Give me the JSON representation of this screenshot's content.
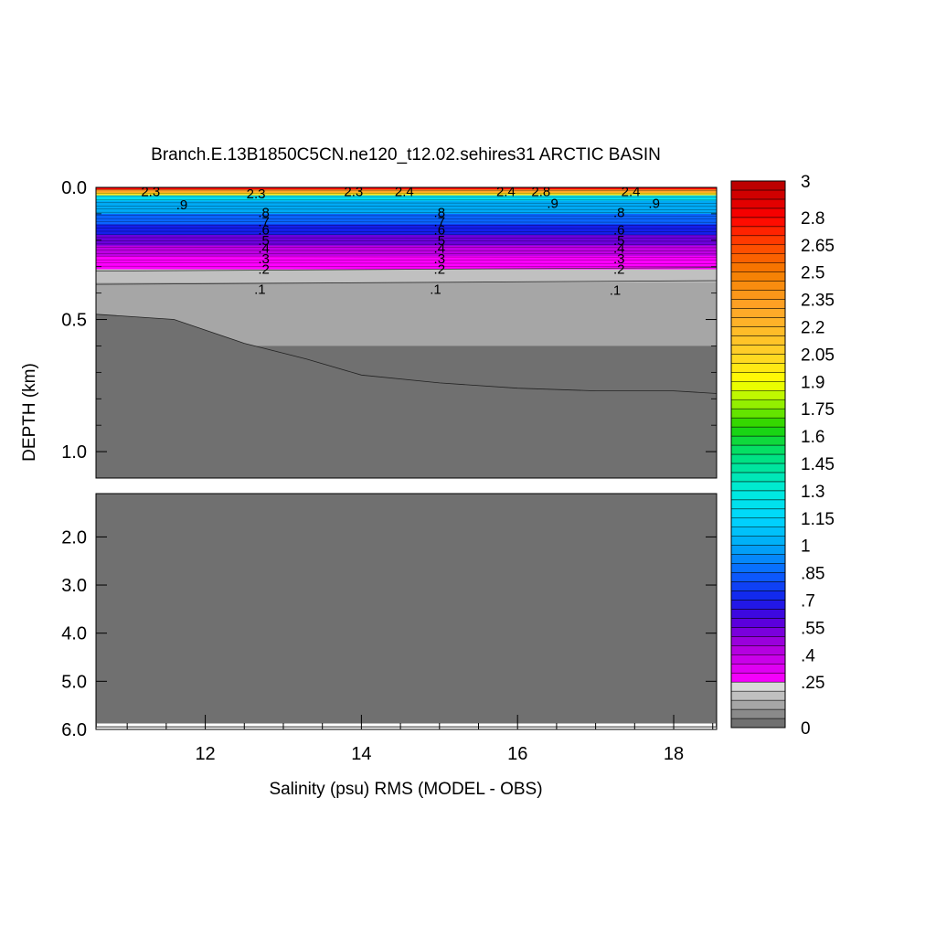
{
  "chart_data": {
    "type": "heatmap",
    "title": "Branch.E.13B1850C5CN.ne120_t12.02.sehires31 ARCTIC BASIN",
    "xlabel": "Salinity (psu) RMS (MODEL - OBS)",
    "ylabel": "DEPTH (km)",
    "xlim": [
      10.6,
      18.55
    ],
    "x_ticks": [
      {
        "value": 12,
        "label": "12"
      },
      {
        "value": 14,
        "label": "14"
      },
      {
        "value": 16,
        "label": "16"
      },
      {
        "value": 18,
        "label": "18"
      }
    ],
    "upper_panel": {
      "ylim": [
        0.0,
        1.1
      ],
      "y_ticks": [
        {
          "value": 0.0,
          "label": "0.0"
        },
        {
          "value": 0.5,
          "label": "0.5"
        },
        {
          "value": 1.0,
          "label": "1.0"
        }
      ]
    },
    "lower_panel": {
      "ylim": [
        1.1,
        6.0
      ],
      "y_ticks": [
        {
          "value": 2.0,
          "label": "2.0"
        },
        {
          "value": 3.0,
          "label": "3.0"
        },
        {
          "value": 4.0,
          "label": "4.0"
        },
        {
          "value": 5.0,
          "label": "5.0"
        },
        {
          "value": 6.0,
          "label": "6.0"
        }
      ]
    },
    "colorbar": {
      "min": 0,
      "max": 3,
      "levels": [
        0,
        0.05,
        0.1,
        0.15,
        0.2,
        0.25,
        0.3,
        0.35,
        0.4,
        0.45,
        0.5,
        0.55,
        0.6,
        0.65,
        0.7,
        0.75,
        0.8,
        0.85,
        0.9,
        0.95,
        1,
        1.05,
        1.1,
        1.15,
        1.2,
        1.25,
        1.3,
        1.35,
        1.4,
        1.45,
        1.5,
        1.55,
        1.6,
        1.65,
        1.7,
        1.75,
        1.8,
        1.85,
        1.9,
        1.95,
        2,
        2.05,
        2.1,
        2.15,
        2.2,
        2.25,
        2.3,
        2.35,
        2.4,
        2.45,
        2.5,
        2.55,
        2.6,
        2.65,
        2.7,
        2.75,
        2.8,
        2.85,
        2.9,
        2.95,
        3
      ],
      "labels": [
        {
          "value": 3,
          "text": "3"
        },
        {
          "value": 2.8,
          "text": "2.8"
        },
        {
          "value": 2.65,
          "text": "2.65"
        },
        {
          "value": 2.5,
          "text": "2.5"
        },
        {
          "value": 2.35,
          "text": "2.35"
        },
        {
          "value": 2.2,
          "text": "2.2"
        },
        {
          "value": 2.05,
          "text": "2.05"
        },
        {
          "value": 1.9,
          "text": "1.9"
        },
        {
          "value": 1.75,
          "text": "1.75"
        },
        {
          "value": 1.6,
          "text": "1.6"
        },
        {
          "value": 1.45,
          "text": "1.45"
        },
        {
          "value": 1.3,
          "text": "1.3"
        },
        {
          "value": 1.15,
          "text": "1.15"
        },
        {
          "value": 1,
          "text": "1"
        },
        {
          "value": 0.85,
          "text": ".85"
        },
        {
          "value": 0.7,
          "text": ".7"
        },
        {
          "value": 0.55,
          "text": ".55"
        },
        {
          "value": 0.4,
          "text": ".4"
        },
        {
          "value": 0.25,
          "text": ".25"
        },
        {
          "value": 0,
          "text": "0"
        }
      ]
    },
    "contour_layers_depth_km": [
      {
        "value": 2.8,
        "depth_top": 0.0,
        "depth_bottom": 0.008
      },
      {
        "value": 2.3,
        "depth_top": 0.008,
        "depth_bottom": 0.02
      },
      {
        "value": 2.0,
        "depth_top": 0.02,
        "depth_bottom": 0.03
      },
      {
        "value": 1.2,
        "depth_top": 0.03,
        "depth_bottom": 0.05
      },
      {
        "value": 1.0,
        "depth_top": 0.05,
        "depth_bottom": 0.1
      },
      {
        "value": 0.85,
        "depth_top": 0.1,
        "depth_bottom": 0.14
      },
      {
        "value": 0.7,
        "depth_top": 0.14,
        "depth_bottom": 0.18
      },
      {
        "value": 0.55,
        "depth_top": 0.18,
        "depth_bottom": 0.22
      },
      {
        "value": 0.4,
        "depth_top": 0.22,
        "depth_bottom": 0.26
      },
      {
        "value": 0.25,
        "depth_top": 0.26,
        "depth_bottom": 0.31
      },
      {
        "value": 0.15,
        "depth_top": 0.31,
        "depth_bottom": 0.36
      },
      {
        "value": 0.1,
        "depth_top": 0.36,
        "depth_bottom": 0.6
      },
      {
        "value": 0.02,
        "depth_top": 0.6,
        "depth_bottom": 6.0
      }
    ],
    "lowest_value_boundary_depth_km": [
      {
        "x": 10.6,
        "depth": 0.48
      },
      {
        "x": 11.6,
        "depth": 0.5
      },
      {
        "x": 12.5,
        "depth": 0.59
      },
      {
        "x": 13.3,
        "depth": 0.65
      },
      {
        "x": 14.0,
        "depth": 0.71
      },
      {
        "x": 15.0,
        "depth": 0.74
      },
      {
        "x": 16.0,
        "depth": 0.76
      },
      {
        "x": 17.0,
        "depth": 0.77
      },
      {
        "x": 18.0,
        "depth": 0.77
      },
      {
        "x": 18.55,
        "depth": 0.78
      }
    ],
    "contour_labels": [
      {
        "text": "2.3",
        "x": 11.3,
        "depth": 0.015
      },
      {
        "text": "2.3",
        "x": 12.65,
        "depth": 0.025
      },
      {
        "text": "2.3",
        "x": 13.9,
        "depth": 0.015
      },
      {
        "text": "2.4",
        "x": 14.55,
        "depth": 0.015
      },
      {
        "text": "2.4",
        "x": 15.85,
        "depth": 0.015
      },
      {
        "text": "2.8",
        "x": 16.3,
        "depth": 0.015
      },
      {
        "text": "2.4",
        "x": 17.45,
        "depth": 0.015
      },
      {
        "text": ".9",
        "x": 11.7,
        "depth": 0.065
      },
      {
        "text": ".9",
        "x": 16.45,
        "depth": 0.06
      },
      {
        "text": ".9",
        "x": 17.75,
        "depth": 0.06
      },
      {
        "text": ".8",
        "x": 12.75,
        "depth": 0.095
      },
      {
        "text": ".7",
        "x": 12.75,
        "depth": 0.13
      },
      {
        "text": ".6",
        "x": 12.75,
        "depth": 0.16
      },
      {
        "text": ".5",
        "x": 12.75,
        "depth": 0.2
      },
      {
        "text": ".4",
        "x": 12.75,
        "depth": 0.23
      },
      {
        "text": ".3",
        "x": 12.75,
        "depth": 0.27
      },
      {
        "text": ".2",
        "x": 12.75,
        "depth": 0.31
      },
      {
        "text": ".1",
        "x": 12.7,
        "depth": 0.385
      },
      {
        "text": ".8",
        "x": 15.0,
        "depth": 0.095
      },
      {
        "text": ".7",
        "x": 15.0,
        "depth": 0.13
      },
      {
        "text": ".6",
        "x": 15.0,
        "depth": 0.16
      },
      {
        "text": ".5",
        "x": 15.0,
        "depth": 0.2
      },
      {
        "text": ".4",
        "x": 15.0,
        "depth": 0.23
      },
      {
        "text": ".3",
        "x": 15.0,
        "depth": 0.27
      },
      {
        "text": ".2",
        "x": 15.0,
        "depth": 0.31
      },
      {
        "text": ".1",
        "x": 14.95,
        "depth": 0.385
      },
      {
        "text": ".8",
        "x": 17.3,
        "depth": 0.095
      },
      {
        "text": ".6",
        "x": 17.3,
        "depth": 0.16
      },
      {
        "text": ".5",
        "x": 17.3,
        "depth": 0.2
      },
      {
        "text": ".4",
        "x": 17.3,
        "depth": 0.23
      },
      {
        "text": ".3",
        "x": 17.3,
        "depth": 0.27
      },
      {
        "text": ".2",
        "x": 17.3,
        "depth": 0.31
      },
      {
        "text": ".1",
        "x": 17.25,
        "depth": 0.39
      }
    ]
  }
}
